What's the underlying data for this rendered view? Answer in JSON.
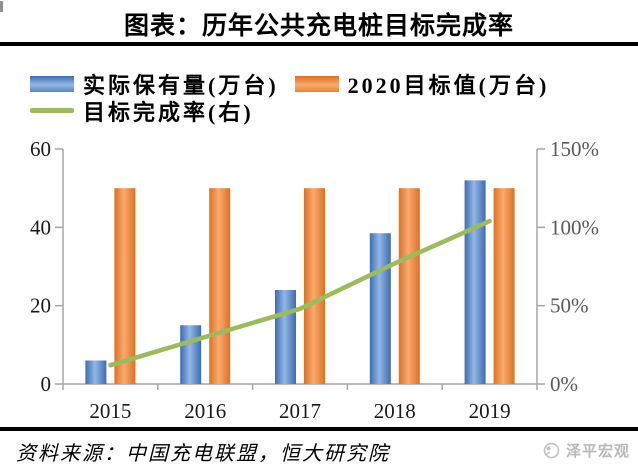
{
  "header": {
    "title": "图表：历年公共充电桩目标完成率"
  },
  "legend": {
    "items": [
      {
        "label": "实际保有量(万台)",
        "swatch": "blue-bar"
      },
      {
        "label": "2020目标值(万台)",
        "swatch": "orange-bar"
      },
      {
        "label": "目标完成率(右)",
        "swatch": "green-line"
      }
    ]
  },
  "chart_data": {
    "type": "bar",
    "title": "图表：历年公共充电桩目标完成率",
    "categories": [
      "2015",
      "2016",
      "2017",
      "2018",
      "2019"
    ],
    "series": [
      {
        "name": "实际保有量(万台)",
        "type": "bar",
        "axis": "left",
        "values": [
          6,
          15,
          24,
          38.5,
          52
        ],
        "color": "#3e6cb3",
        "color_light": "#93b7e4"
      },
      {
        "name": "2020目标值(万台)",
        "type": "bar",
        "axis": "left",
        "values": [
          50,
          50,
          50,
          50,
          50
        ],
        "color": "#e2701d",
        "color_light": "#f6ab72"
      },
      {
        "name": "目标完成率(右)",
        "type": "line",
        "axis": "right",
        "values": [
          12,
          30,
          48,
          77,
          104
        ],
        "unit": "%",
        "color": "#9cbb5d"
      }
    ],
    "left_axis": {
      "min": 0,
      "max": 60,
      "ticks": [
        0,
        20,
        40,
        60
      ]
    },
    "right_axis": {
      "min": 0,
      "max": 150,
      "ticks": [
        0,
        50,
        100,
        150
      ],
      "suffix": "%"
    },
    "xlabel": "",
    "ylabel": "",
    "grid": false,
    "legend_position": "top-left",
    "axis_color": "#a6a6a6",
    "left_tick_color": "#1a1a1a",
    "right_tick_color": "#595959",
    "category_label_color": "#1a1a1a"
  },
  "footer": {
    "source": "资料来源：中国充电联盟，恒大研究院",
    "watermark": "泽平宏观"
  }
}
